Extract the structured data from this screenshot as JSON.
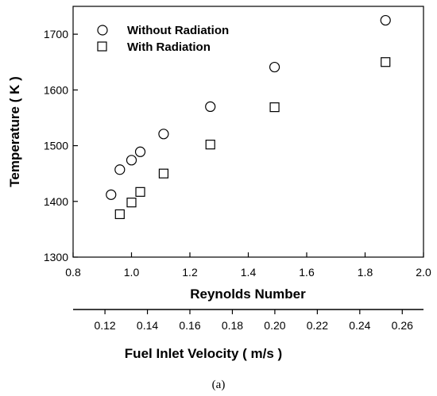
{
  "chart_data": {
    "type": "scatter",
    "xlabel": "Reynolds Number",
    "ylabel": "Temperature ( K )",
    "xlim": [
      0.8,
      2.0
    ],
    "ylim": [
      1300,
      1750
    ],
    "x_ticks": [
      "0.8",
      "1.0",
      "1.2",
      "1.4",
      "1.6",
      "1.8",
      "2.0"
    ],
    "y_ticks": [
      "1300",
      "1400",
      "1500",
      "1600",
      "1700"
    ],
    "secondary_x_axis": {
      "label": "Fuel Inlet Velocity ( m/s )",
      "ticks": [
        "0.12",
        "0.14",
        "0.16",
        "0.18",
        "0.20",
        "0.22",
        "0.24",
        "0.26"
      ],
      "tick_values": [
        0.12,
        0.14,
        0.16,
        0.18,
        0.2,
        0.22,
        0.24,
        0.26
      ],
      "lim": [
        0.105,
        0.27
      ]
    },
    "series": [
      {
        "name": "Without Radiation",
        "marker": "circle",
        "x": [
          0.93,
          0.96,
          1.0,
          1.03,
          1.11,
          1.27,
          1.49,
          1.87
        ],
        "y": [
          1412,
          1457,
          1474,
          1489,
          1521,
          1570,
          1641,
          1725
        ]
      },
      {
        "name": "With Radiation",
        "marker": "square",
        "x": [
          0.96,
          1.0,
          1.03,
          1.11,
          1.27,
          1.49,
          1.87
        ],
        "y": [
          1377,
          1398,
          1417,
          1450,
          1502,
          1569,
          1650
        ]
      }
    ],
    "legend_position": "top-left",
    "grid": false
  },
  "caption": "(a)"
}
